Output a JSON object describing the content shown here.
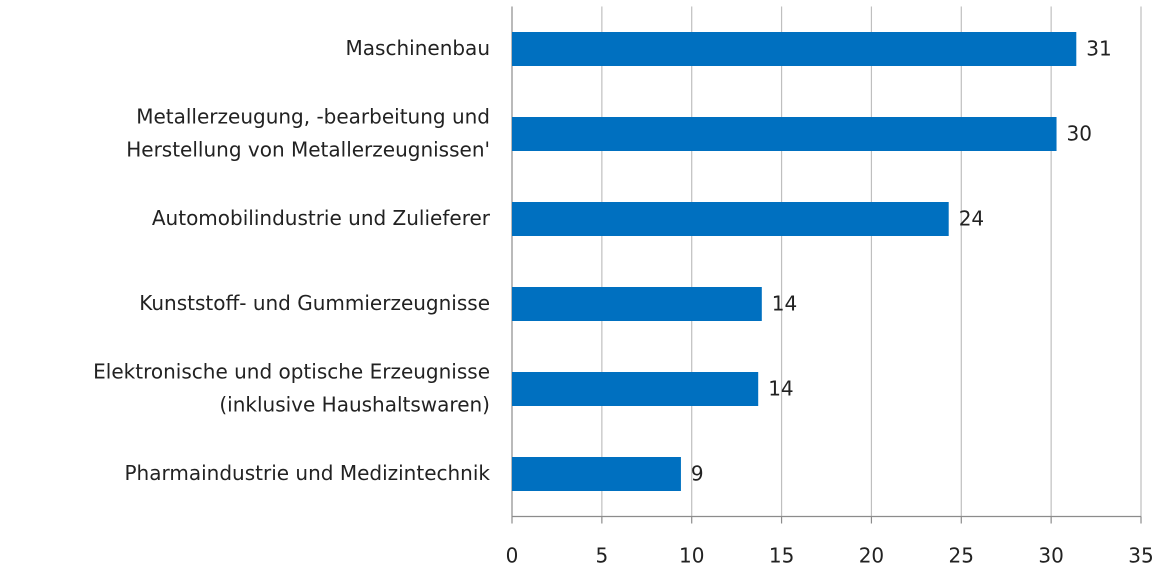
{
  "chart_data": {
    "type": "barh",
    "categories": [
      "Maschinenbau",
      "Metallerzeugung, -bearbeitung und\nHerstellung von Metallerzeugnissen'",
      "Automobilindustrie und Zulieferer",
      "Kunststoff- und Gummierzeugnisse",
      "Elektronische und optische Erzeugnisse\n(inklusive Haushaltswaren)",
      "Pharmaindustrie und Medizintechnik"
    ],
    "values": [
      31.4,
      30.3,
      24.3,
      13.9,
      13.7,
      9.4
    ],
    "value_labels": [
      "31",
      "30",
      "24",
      "14",
      "14",
      "9"
    ],
    "color": "#0070c0",
    "xlim": [
      0,
      35
    ],
    "xticks": [
      0,
      5,
      10,
      15,
      20,
      25,
      30,
      35
    ],
    "grid": true
  }
}
